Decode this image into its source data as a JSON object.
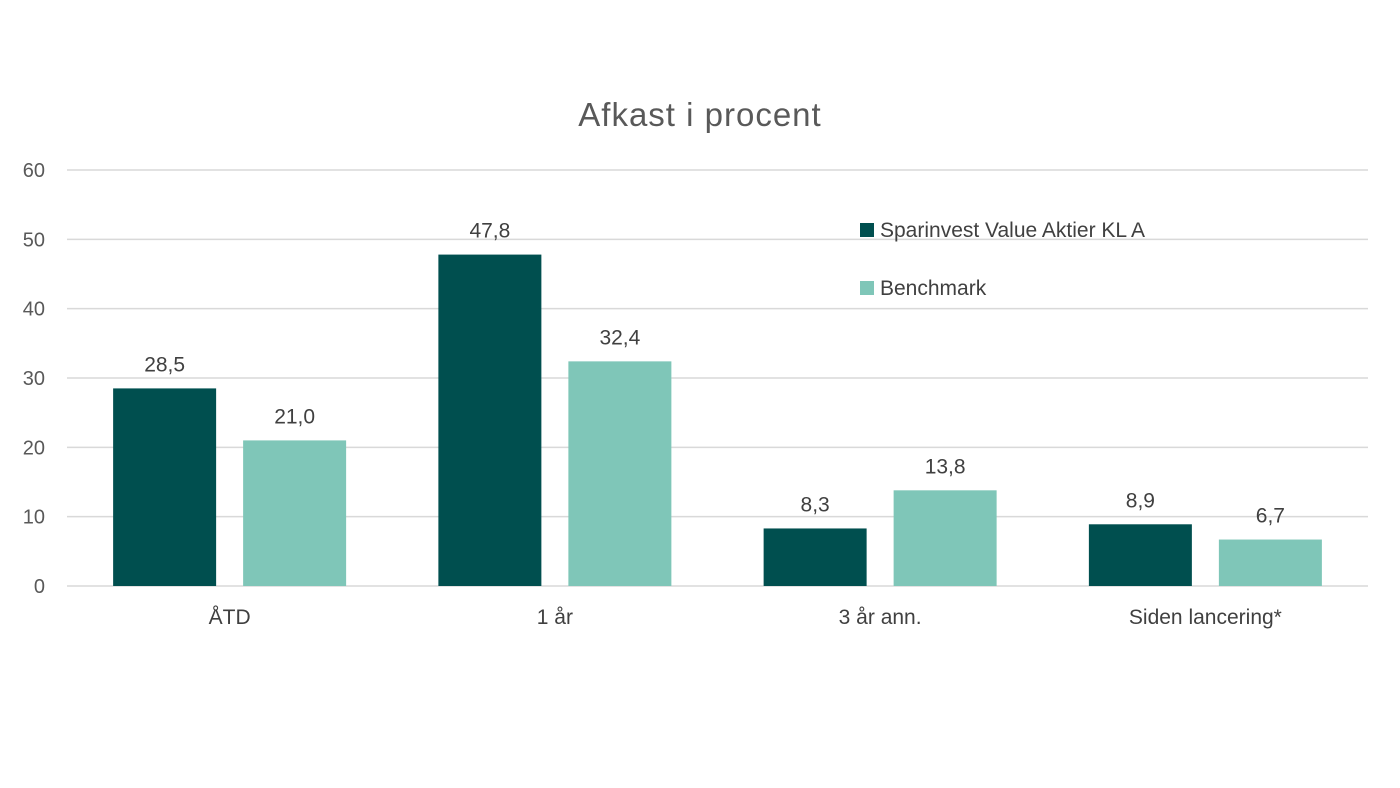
{
  "chart_data": {
    "type": "bar",
    "title": "Afkast i procent",
    "categories": [
      "ÅTD",
      "1 år",
      "3 år ann.",
      "Siden lancering*"
    ],
    "series": [
      {
        "name": "Sparinvest Value Aktier KL A",
        "values": [
          28.5,
          47.8,
          8.3,
          8.9
        ],
        "labels": [
          "28,5",
          "47,8",
          "8,3",
          "8,9"
        ],
        "color": "#004f4f"
      },
      {
        "name": "Benchmark",
        "values": [
          21.0,
          32.4,
          13.8,
          6.7
        ],
        "labels": [
          "21,0",
          "32,4",
          "13,8",
          "6,7"
        ],
        "color": "#7fc6b8"
      }
    ],
    "ylim": [
      0,
      60
    ],
    "yticks": [
      "0",
      "10",
      "20",
      "30",
      "40",
      "50",
      "60"
    ],
    "grid": true,
    "legend_position": "top-right",
    "xlabel": "",
    "ylabel": ""
  }
}
